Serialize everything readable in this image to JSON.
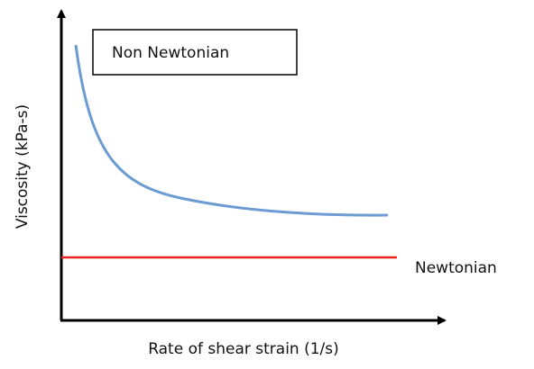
{
  "y_axis_label": "Viscosity (kPa-s)",
  "x_axis_label": "Rate of shear strain (1/s)",
  "curves": [
    {
      "label": "Non Newtonian"
    },
    {
      "label": "Newtonian"
    }
  ]
}
